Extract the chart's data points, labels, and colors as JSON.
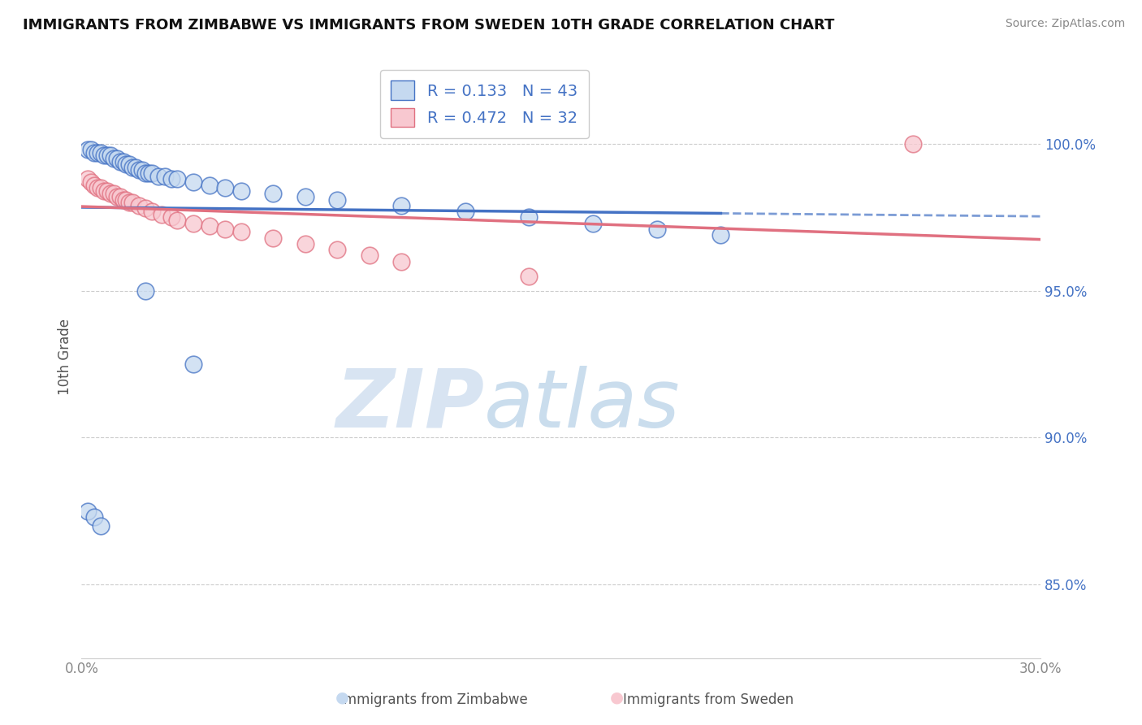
{
  "title": "IMMIGRANTS FROM ZIMBABWE VS IMMIGRANTS FROM SWEDEN 10TH GRADE CORRELATION CHART",
  "source": "Source: ZipAtlas.com",
  "ylabel": "10th Grade",
  "yticks": [
    0.85,
    0.9,
    0.95,
    1.0
  ],
  "ytick_labels": [
    "85.0%",
    "90.0%",
    "95.0%",
    "100.0%"
  ],
  "xlim": [
    0.0,
    0.3
  ],
  "ylim": [
    0.825,
    1.03
  ],
  "legend_blue_r": "R = 0.133",
  "legend_blue_n": "N = 43",
  "legend_pink_r": "R = 0.472",
  "legend_pink_n": "N = 32",
  "blue_fill": "#c5d9f0",
  "blue_edge": "#4472c4",
  "pink_fill": "#f8c8d0",
  "pink_edge": "#e07080",
  "watermark_zip": "ZIP",
  "watermark_atlas": "atlas",
  "background_color": "#ffffff",
  "zimbabwe_x": [
    0.002,
    0.003,
    0.004,
    0.005,
    0.006,
    0.007,
    0.008,
    0.009,
    0.01,
    0.011,
    0.012,
    0.013,
    0.014,
    0.015,
    0.016,
    0.017,
    0.018,
    0.019,
    0.02,
    0.021,
    0.022,
    0.024,
    0.026,
    0.028,
    0.03,
    0.035,
    0.04,
    0.045,
    0.05,
    0.06,
    0.07,
    0.08,
    0.1,
    0.12,
    0.14,
    0.16,
    0.18,
    0.2,
    0.002,
    0.004,
    0.006,
    0.02,
    0.035
  ],
  "zimbabwe_y": [
    0.998,
    0.998,
    0.997,
    0.997,
    0.997,
    0.996,
    0.996,
    0.996,
    0.995,
    0.995,
    0.994,
    0.994,
    0.993,
    0.993,
    0.992,
    0.992,
    0.991,
    0.991,
    0.99,
    0.99,
    0.99,
    0.989,
    0.989,
    0.988,
    0.988,
    0.987,
    0.986,
    0.985,
    0.984,
    0.983,
    0.982,
    0.981,
    0.979,
    0.977,
    0.975,
    0.973,
    0.971,
    0.969,
    0.875,
    0.873,
    0.87,
    0.95,
    0.925
  ],
  "sweden_x": [
    0.002,
    0.003,
    0.004,
    0.005,
    0.006,
    0.007,
    0.008,
    0.009,
    0.01,
    0.011,
    0.012,
    0.013,
    0.014,
    0.015,
    0.016,
    0.018,
    0.02,
    0.022,
    0.025,
    0.028,
    0.03,
    0.035,
    0.04,
    0.045,
    0.05,
    0.06,
    0.07,
    0.08,
    0.09,
    0.1,
    0.14,
    0.26
  ],
  "sweden_y": [
    0.988,
    0.987,
    0.986,
    0.985,
    0.985,
    0.984,
    0.984,
    0.983,
    0.983,
    0.982,
    0.982,
    0.981,
    0.981,
    0.98,
    0.98,
    0.979,
    0.978,
    0.977,
    0.976,
    0.975,
    0.974,
    0.973,
    0.972,
    0.971,
    0.97,
    0.968,
    0.966,
    0.964,
    0.962,
    0.96,
    0.955,
    1.0
  ]
}
